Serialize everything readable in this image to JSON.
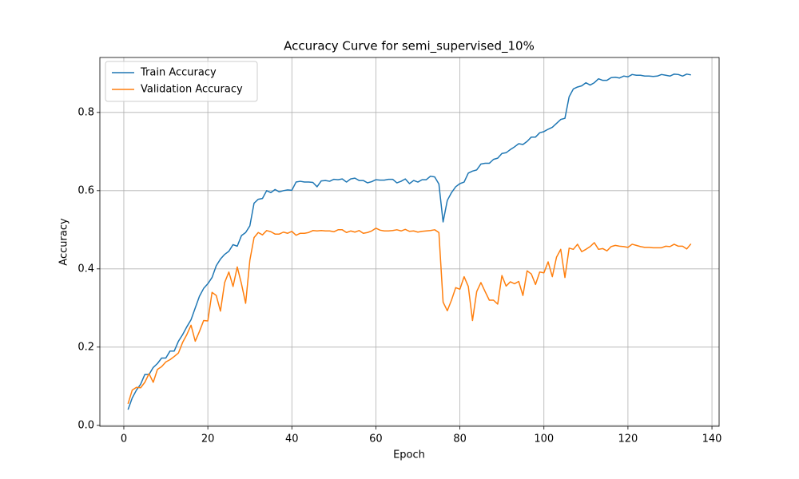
{
  "chart_data": {
    "type": "line",
    "title": "Accuracy Curve for semi_supervised_10%",
    "x_label": "Epoch",
    "y_label": "Accuracy",
    "x": [
      1,
      2,
      3,
      4,
      5,
      6,
      7,
      8,
      9,
      10,
      11,
      12,
      13,
      14,
      15,
      16,
      17,
      18,
      19,
      20,
      21,
      22,
      23,
      24,
      25,
      26,
      27,
      28,
      29,
      30,
      31,
      32,
      33,
      34,
      35,
      36,
      37,
      38,
      39,
      40,
      41,
      42,
      43,
      44,
      45,
      46,
      47,
      48,
      49,
      50,
      51,
      52,
      53,
      54,
      55,
      56,
      57,
      58,
      59,
      60,
      61,
      62,
      63,
      64,
      65,
      66,
      67,
      68,
      69,
      70,
      71,
      72,
      73,
      74,
      75,
      76,
      77,
      78,
      79,
      80,
      81,
      82,
      83,
      84,
      85,
      86,
      87,
      88,
      89,
      90,
      91,
      92,
      93,
      94,
      95,
      96,
      97,
      98,
      99,
      100,
      101,
      102,
      103,
      104,
      105,
      106,
      107,
      108,
      109,
      110,
      111,
      112,
      113,
      114,
      115,
      116,
      117,
      118,
      119,
      120,
      121,
      122,
      123,
      124,
      125,
      126,
      127,
      128,
      129,
      130,
      131,
      132,
      133,
      134,
      135
    ],
    "series": [
      {
        "name": "Train Accuracy",
        "color": "#1f77b4",
        "values": [
          0.04,
          0.07,
          0.09,
          0.105,
          0.13,
          0.13,
          0.148,
          0.158,
          0.172,
          0.172,
          0.19,
          0.19,
          0.215,
          0.232,
          0.252,
          0.27,
          0.3,
          0.33,
          0.35,
          0.362,
          0.378,
          0.408,
          0.425,
          0.437,
          0.445,
          0.462,
          0.458,
          0.485,
          0.493,
          0.51,
          0.568,
          0.578,
          0.58,
          0.6,
          0.595,
          0.603,
          0.597,
          0.6,
          0.602,
          0.601,
          0.622,
          0.624,
          0.622,
          0.622,
          0.621,
          0.61,
          0.625,
          0.626,
          0.624,
          0.629,
          0.628,
          0.63,
          0.622,
          0.63,
          0.632,
          0.626,
          0.626,
          0.62,
          0.623,
          0.628,
          0.627,
          0.627,
          0.629,
          0.629,
          0.62,
          0.624,
          0.63,
          0.618,
          0.626,
          0.622,
          0.628,
          0.628,
          0.637,
          0.635,
          0.617,
          0.52,
          0.575,
          0.595,
          0.61,
          0.618,
          0.622,
          0.645,
          0.65,
          0.653,
          0.668,
          0.67,
          0.67,
          0.68,
          0.683,
          0.695,
          0.697,
          0.705,
          0.712,
          0.72,
          0.718,
          0.726,
          0.737,
          0.737,
          0.748,
          0.751,
          0.757,
          0.762,
          0.772,
          0.782,
          0.785,
          0.84,
          0.86,
          0.865,
          0.868,
          0.876,
          0.87,
          0.876,
          0.886,
          0.882,
          0.882,
          0.889,
          0.89,
          0.888,
          0.893,
          0.891,
          0.897,
          0.895,
          0.895,
          0.893,
          0.893,
          0.892,
          0.893,
          0.897,
          0.895,
          0.893,
          0.898,
          0.897,
          0.893,
          0.898,
          0.896
        ]
      },
      {
        "name": "Validation Accuracy",
        "color": "#ff7f0e",
        "values": [
          0.055,
          0.09,
          0.097,
          0.096,
          0.11,
          0.132,
          0.11,
          0.143,
          0.15,
          0.162,
          0.168,
          0.176,
          0.185,
          0.212,
          0.232,
          0.256,
          0.215,
          0.24,
          0.268,
          0.267,
          0.34,
          0.332,
          0.292,
          0.365,
          0.392,
          0.355,
          0.405,
          0.362,
          0.312,
          0.422,
          0.48,
          0.493,
          0.487,
          0.498,
          0.495,
          0.489,
          0.489,
          0.494,
          0.491,
          0.496,
          0.486,
          0.491,
          0.491,
          0.493,
          0.498,
          0.497,
          0.498,
          0.497,
          0.497,
          0.495,
          0.5,
          0.5,
          0.493,
          0.497,
          0.494,
          0.498,
          0.491,
          0.493,
          0.497,
          0.504,
          0.499,
          0.497,
          0.497,
          0.498,
          0.5,
          0.497,
          0.501,
          0.496,
          0.497,
          0.494,
          0.496,
          0.497,
          0.498,
          0.5,
          0.493,
          0.315,
          0.293,
          0.32,
          0.352,
          0.348,
          0.38,
          0.355,
          0.268,
          0.342,
          0.365,
          0.342,
          0.32,
          0.32,
          0.31,
          0.383,
          0.356,
          0.367,
          0.362,
          0.368,
          0.332,
          0.395,
          0.387,
          0.36,
          0.392,
          0.39,
          0.418,
          0.38,
          0.43,
          0.45,
          0.378,
          0.453,
          0.45,
          0.463,
          0.444,
          0.45,
          0.457,
          0.467,
          0.45,
          0.452,
          0.446,
          0.457,
          0.46,
          0.458,
          0.457,
          0.455,
          0.463,
          0.46,
          0.457,
          0.455,
          0.455,
          0.454,
          0.454,
          0.454,
          0.458,
          0.457,
          0.463,
          0.458,
          0.458,
          0.451,
          0.464
        ]
      }
    ],
    "xlim": [
      -5.7,
      141.7
    ],
    "xticks": [
      0,
      20,
      40,
      60,
      80,
      100,
      120,
      140
    ],
    "ylim": [
      -0.0025,
      0.9405
    ],
    "yticks": [
      {
        "value": 0,
        "label": "0.0"
      },
      0.2,
      0.4,
      0.6,
      0.8
    ],
    "grid": true,
    "legend": "upper left"
  }
}
